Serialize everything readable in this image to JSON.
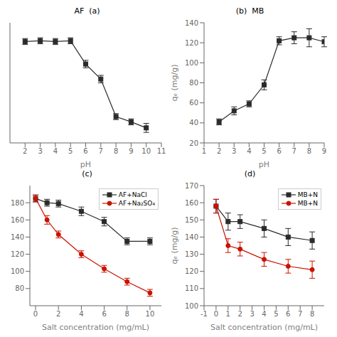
{
  "chart_data": [
    {
      "type": "line",
      "title": "AF  (a)",
      "x": [
        2,
        3,
        4,
        5,
        6,
        7,
        8,
        9,
        10
      ],
      "series": [
        {
          "color": "#2b2b2b",
          "marker": "square",
          "values": [
            195,
            196,
            195,
            196,
            165,
            145,
            95,
            88,
            80
          ],
          "yerr": [
            4,
            4,
            4,
            4,
            5,
            5,
            4,
            4,
            6
          ]
        }
      ],
      "xlabel": "pH",
      "xlim": [
        1,
        11
      ],
      "xticks": [
        2,
        3,
        4,
        5,
        6,
        7,
        8,
        9,
        10,
        11
      ],
      "ylim": [
        60,
        220
      ],
      "tick_labels": "x",
      "grid": false
    },
    {
      "type": "line",
      "title": "(b)  MB",
      "x": [
        2,
        3,
        4,
        5,
        6,
        7,
        8,
        9
      ],
      "series": [
        {
          "color": "#2b2b2b",
          "marker": "square",
          "values": [
            41,
            52,
            59,
            78,
            122,
            125,
            125,
            121
          ],
          "yerr": [
            3,
            4,
            3,
            5,
            4,
            6,
            9,
            5
          ]
        }
      ],
      "xlabel": "pH",
      "ylabel": "qₑ (mg/g)",
      "xlim": [
        1,
        9
      ],
      "xticks": [
        1,
        2,
        3,
        4,
        5,
        6,
        7,
        8,
        9
      ],
      "ylim": [
        20,
        140
      ],
      "yticks": [
        20,
        40,
        60,
        80,
        100,
        120,
        140
      ],
      "grid": false
    },
    {
      "type": "line",
      "title": "(c)",
      "x": [
        0,
        1,
        2,
        4,
        6,
        8,
        10
      ],
      "series": [
        {
          "name": "AF+NaCl",
          "color": "#2b2b2b",
          "marker": "square",
          "values": [
            185,
            180,
            179,
            170,
            158,
            135,
            135
          ],
          "yerr": [
            4,
            4,
            4,
            5,
            5,
            4,
            4
          ]
        },
        {
          "name": "AF+Na₂SO₄",
          "color": "#cc1100",
          "marker": "circle",
          "values": [
            185,
            160,
            143,
            120,
            103,
            88,
            75
          ],
          "yerr": [
            4,
            5,
            4,
            4,
            4,
            4,
            4
          ]
        }
      ],
      "xlabel": "Salt concentration (mg/mL)",
      "xlim": [
        -0.5,
        11
      ],
      "xticks": [
        0,
        2,
        4,
        6,
        8,
        10
      ],
      "ylim": [
        60,
        200
      ],
      "yticks": [
        80,
        100,
        120,
        140,
        160,
        180
      ],
      "legend": "upper right",
      "grid": false
    },
    {
      "type": "line",
      "title": "(d)",
      "x": [
        0,
        1,
        2,
        4,
        6,
        8
      ],
      "series": [
        {
          "name": "MB+N",
          "color": "#2b2b2b",
          "marker": "square",
          "values": [
            158,
            149,
            149,
            145,
            140,
            138
          ],
          "yerr": [
            4,
            5,
            4,
            5,
            5,
            5
          ]
        },
        {
          "name": "MB+N",
          "color": "#cc1100",
          "marker": "circle",
          "values": [
            158,
            135,
            133,
            127,
            123,
            121
          ],
          "yerr": [
            4,
            4,
            4,
            4,
            4,
            5
          ]
        }
      ],
      "xlabel": "Salt concentration (mg/mL)",
      "ylabel": "qₑ (mg/g)",
      "xlim": [
        -1,
        9
      ],
      "xticks": [
        -1,
        0,
        1,
        2,
        3,
        4,
        5,
        6,
        7,
        8
      ],
      "ylim": [
        100,
        170
      ],
      "yticks": [
        100,
        110,
        120,
        130,
        140,
        150,
        160,
        170
      ],
      "legend": "upper right",
      "grid": false
    }
  ]
}
